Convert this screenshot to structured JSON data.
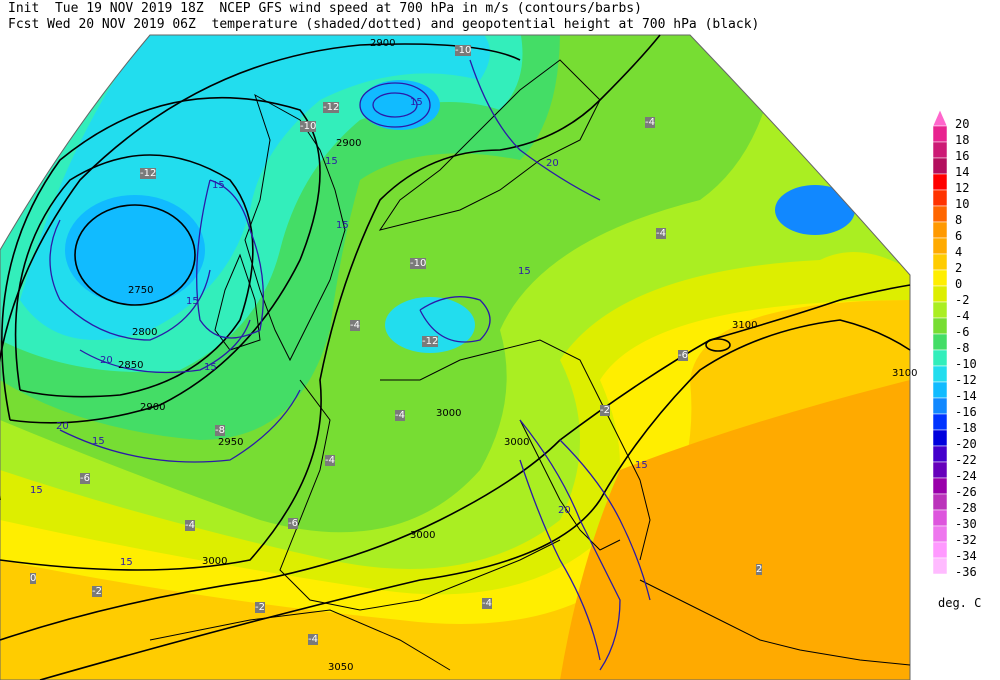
{
  "header": {
    "line1": "Init  Tue 19 NOV 2019 18Z  NCEP GFS wind speed at 700 hPa in m/s (contours/barbs)",
    "line2": "Fcst Wed 20 NOV 2019 06Z  temperature (shaded/dotted) and geopotential height at 700 hPa (black)"
  },
  "colorbar": {
    "units": "deg. C",
    "levels": [
      {
        "label": "20",
        "color": "#ff66cc"
      },
      {
        "label": "18",
        "color": "#e8238f"
      },
      {
        "label": "16",
        "color": "#cc1a75"
      },
      {
        "label": "14",
        "color": "#b30f5e"
      },
      {
        "label": "12",
        "color": "#ff0000"
      },
      {
        "label": "10",
        "color": "#ff3300"
      },
      {
        "label": "8",
        "color": "#ff6600"
      },
      {
        "label": "6",
        "color": "#ff9900"
      },
      {
        "label": "4",
        "color": "#ffaa00"
      },
      {
        "label": "2",
        "color": "#ffcc00"
      },
      {
        "label": "0",
        "color": "#ffee00"
      },
      {
        "label": "-2",
        "color": "#ddee00"
      },
      {
        "label": "-4",
        "color": "#aaee22"
      },
      {
        "label": "-6",
        "color": "#77dd33"
      },
      {
        "label": "-8",
        "color": "#44dd66"
      },
      {
        "label": "-10",
        "color": "#33eebb"
      },
      {
        "label": "-12",
        "color": "#22ddee"
      },
      {
        "label": "-14",
        "color": "#11bbff"
      },
      {
        "label": "-16",
        "color": "#1188ff"
      },
      {
        "label": "-18",
        "color": "#0033ff"
      },
      {
        "label": "-20",
        "color": "#0000dd"
      },
      {
        "label": "-22",
        "color": "#4400cc"
      },
      {
        "label": "-24",
        "color": "#6600bb"
      },
      {
        "label": "-26",
        "color": "#9900aa"
      },
      {
        "label": "-28",
        "color": "#bb33bb"
      },
      {
        "label": "-30",
        "color": "#dd55dd"
      },
      {
        "label": "-32",
        "color": "#ee77ee"
      },
      {
        "label": "-34",
        "color": "#ff99ff"
      },
      {
        "label": "-36",
        "color": "#ffbbff"
      }
    ]
  },
  "height_labels": [
    "2900",
    "2900",
    "2750",
    "2800",
    "2850",
    "2900",
    "2950",
    "3000",
    "3000",
    "3000",
    "3000",
    "3100",
    "3100",
    "3050"
  ],
  "temp_labels": [
    "-10",
    "-12",
    "-10",
    "-12",
    "-6",
    "-4",
    "-4",
    "-2",
    "-4",
    "-10",
    "-12",
    "-8",
    "-4",
    "-6",
    "-4",
    "-2",
    "0",
    "-4",
    "-2",
    "-4",
    "2",
    "-6",
    "-4"
  ],
  "wind_labels": [
    "15",
    "15",
    "15",
    "20",
    "15",
    "15",
    "15",
    "15",
    "20",
    "15",
    "20",
    "15",
    "15",
    "20",
    "15"
  ],
  "colors": {
    "height_contour": "#000000",
    "wind_contour": "#2b1aa8",
    "coastline": "#000000"
  }
}
